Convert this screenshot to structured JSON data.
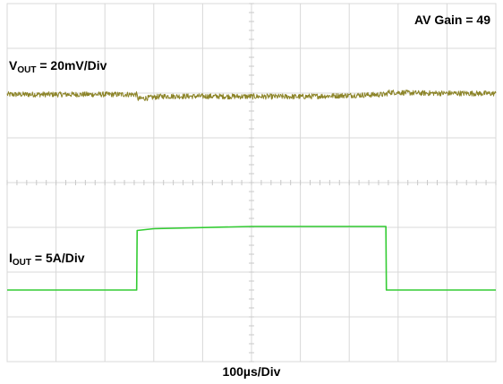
{
  "chart_data": {
    "type": "line",
    "annotations": {
      "gain": "AV Gain = 49",
      "vout_name": "V",
      "vout_sub": "OUT",
      "vout_scale": " = 20mV/Div",
      "iout_name": "I",
      "iout_sub": "OUT",
      "iout_scale": " = 5A/Div",
      "timebase": "100µs/Div"
    },
    "grid": true,
    "divisions": {
      "x": 10,
      "y": 8
    },
    "xlim_div": [
      0,
      10
    ],
    "ylim_div": [
      0,
      8
    ],
    "series": [
      {
        "name": "VOUT",
        "color": "#8c8428",
        "style": "noisy",
        "noise_div": 0.06,
        "x_div": [
          0,
          2.65,
          2.68,
          3.2,
          6.0,
          7.75,
          7.8,
          8.4,
          10
        ],
        "y_div": [
          5.97,
          5.97,
          5.87,
          5.93,
          5.92,
          5.97,
          6.02,
          6.0,
          5.99
        ]
      },
      {
        "name": "IOUT",
        "color": "#33cc33",
        "style": "clean",
        "x_div": [
          0,
          2.65,
          2.66,
          3.0,
          5.0,
          7.75,
          7.76,
          10
        ],
        "y_div": [
          1.6,
          1.6,
          2.93,
          2.97,
          3.02,
          3.02,
          1.6,
          1.6
        ]
      }
    ]
  }
}
